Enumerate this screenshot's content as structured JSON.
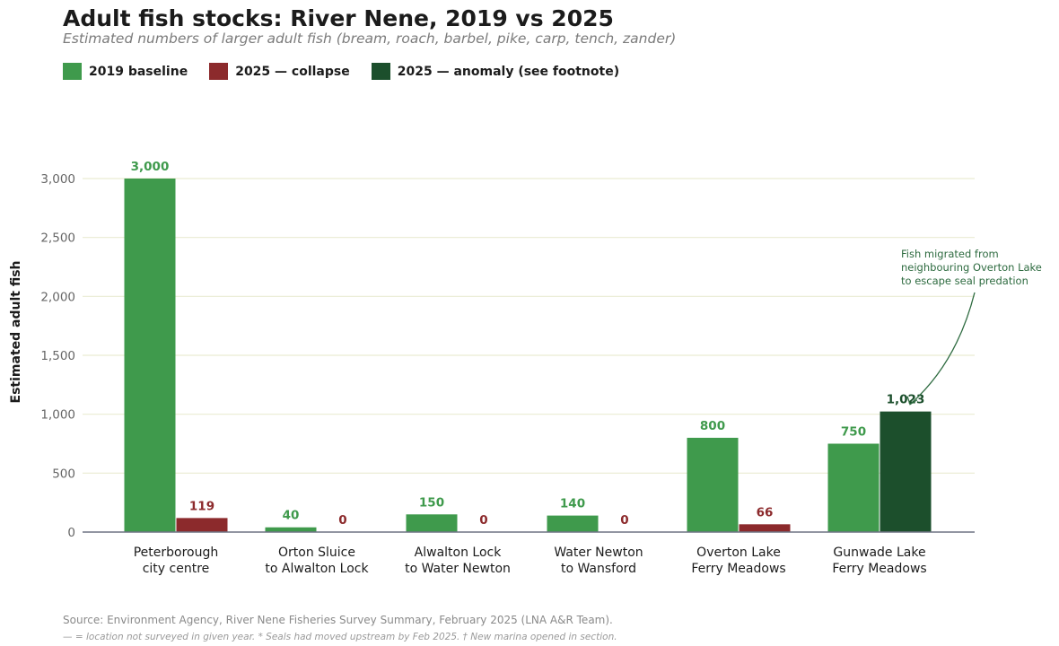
{
  "header": {
    "title": "Adult fish stocks: River Nene, 2019 vs 2025",
    "subtitle": "Estimated numbers of larger adult fish (bream, roach, barbel, pike, carp, tench, zander)"
  },
  "legend": [
    {
      "label": "2019 baseline",
      "color": "#3f9a4c"
    },
    {
      "label": "2025 — collapse",
      "color": "#8c2a2c"
    },
    {
      "label": "2025 — anomaly (see footnote)",
      "color": "#1c4f2c"
    }
  ],
  "chart_data": {
    "type": "bar",
    "categories": [
      [
        "Peterborough",
        "city centre"
      ],
      [
        "Orton Sluice",
        "to Alwalton Lock"
      ],
      [
        "Alwalton Lock",
        "to Water Newton"
      ],
      [
        "Water Newton",
        "to Wansford"
      ],
      [
        "Overton Lake",
        "Ferry Meadows"
      ],
      [
        "Gunwade Lake",
        "Ferry Meadows"
      ]
    ],
    "series": [
      {
        "name": "2019 baseline",
        "values": [
          3000,
          40,
          150,
          140,
          800,
          750
        ],
        "color": "#3f9a4c",
        "label_color": "#3f9a4c"
      },
      {
        "name": "2025",
        "values": [
          119,
          0,
          0,
          0,
          66,
          1023
        ],
        "colors": [
          "#8c2a2c",
          "#8c2a2c",
          "#8c2a2c",
          "#8c2a2c",
          "#8c2a2c",
          "#1c4f2c"
        ],
        "label_colors": [
          "#8c2a2c",
          "#8c2a2c",
          "#8c2a2c",
          "#8c2a2c",
          "#8c2a2c",
          "#1c4f2c"
        ]
      }
    ],
    "ylabel": "Estimated adult fish",
    "ylim": [
      0,
      3000
    ],
    "yticks": [
      0,
      500,
      1000,
      1500,
      2000,
      2500,
      3000
    ],
    "ytick_labels": [
      "0",
      "500",
      "1,000",
      "1,500",
      "2,000",
      "2,500",
      "3,000"
    ],
    "grid": true,
    "annotation": {
      "lines": [
        "Fish migrated from",
        "neighbouring Overton Lake",
        "to escape seal predation"
      ],
      "color": "#2e6b40",
      "target": {
        "category_index": 5,
        "series_index": 1
      }
    }
  },
  "footer": {
    "source": "Source: Environment Agency, River Nene Fisheries Survey Summary, February 2025 (LNA A&R Team).",
    "footnote": "— = location not surveyed in given year. * Seals had moved upstream by Feb 2025. † New marina opened in section."
  }
}
